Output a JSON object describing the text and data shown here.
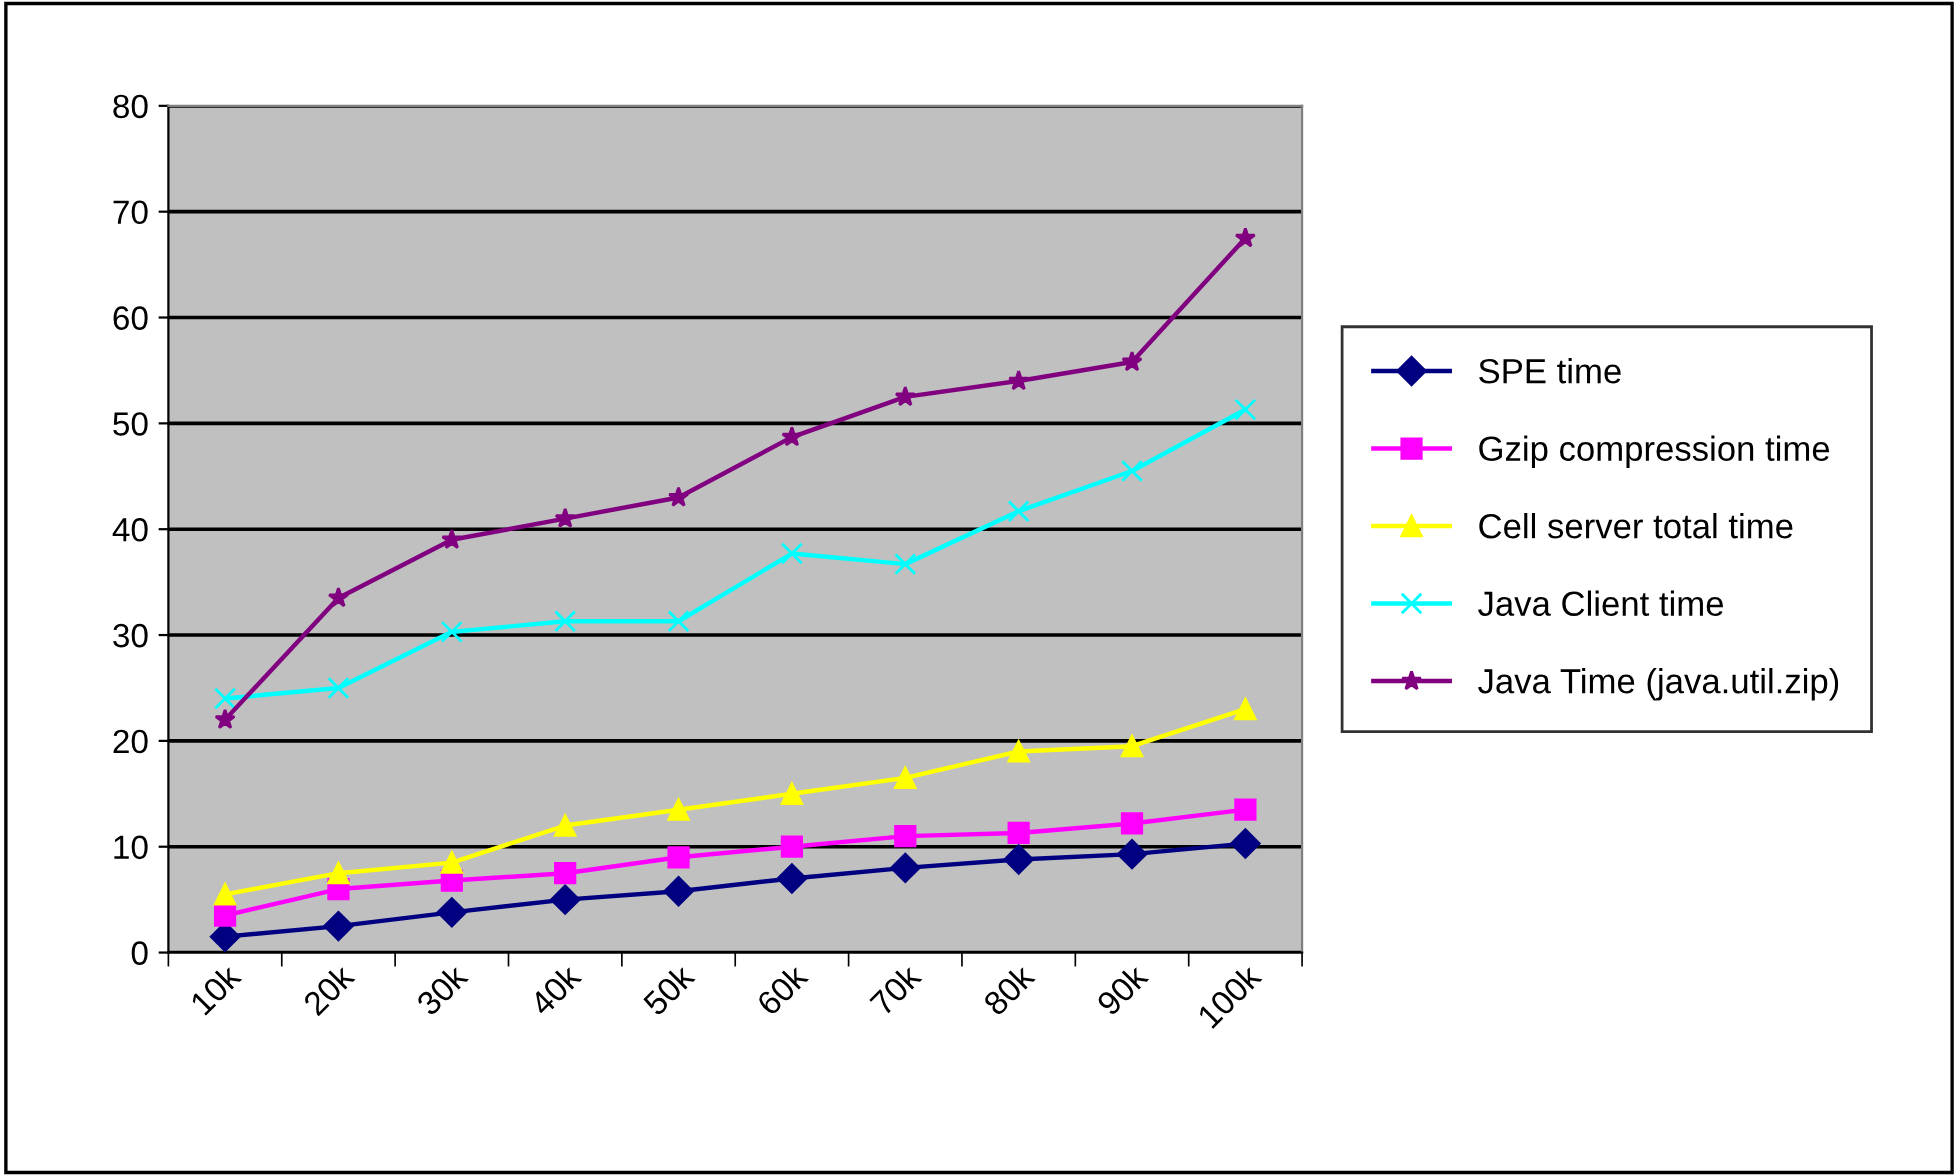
{
  "chart_data": {
    "type": "line",
    "categories": [
      "10k",
      "20k",
      "30k",
      "40k",
      "50k",
      "60k",
      "70k",
      "80k",
      "90k",
      "100k"
    ],
    "series": [
      {
        "name": "SPE time",
        "color": "#000080",
        "marker": "diamond",
        "values": [
          1.5,
          2.5,
          3.8,
          5,
          5.8,
          7,
          8,
          8.8,
          9.3,
          10.3
        ]
      },
      {
        "name": "Gzip compression time",
        "color": "#ff00ff",
        "marker": "square",
        "values": [
          3.5,
          6,
          6.8,
          7.5,
          9,
          10,
          11,
          11.3,
          12.2,
          13.5
        ]
      },
      {
        "name": "Cell server total time",
        "color": "#ffff00",
        "marker": "triangle",
        "values": [
          5.5,
          7.5,
          8.5,
          12,
          13.5,
          15,
          16.5,
          19,
          19.5,
          23
        ]
      },
      {
        "name": "Java Client time",
        "color": "#00ffff",
        "marker": "cross",
        "values": [
          24,
          25,
          30.3,
          31.3,
          31.3,
          37.7,
          36.7,
          41.7,
          45.5,
          51.3
        ]
      },
      {
        "name": "Java Time (java.util.zip)",
        "color": "#800080",
        "marker": "star",
        "values": [
          22,
          33.5,
          39,
          41,
          43,
          48.7,
          52.5,
          54,
          55.8,
          67.5
        ]
      }
    ],
    "ylim": [
      0,
      80
    ],
    "yticks": [
      0,
      10,
      20,
      30,
      40,
      50,
      60,
      70,
      80
    ],
    "grid": "y",
    "legend": "right",
    "line_style": "solid"
  }
}
